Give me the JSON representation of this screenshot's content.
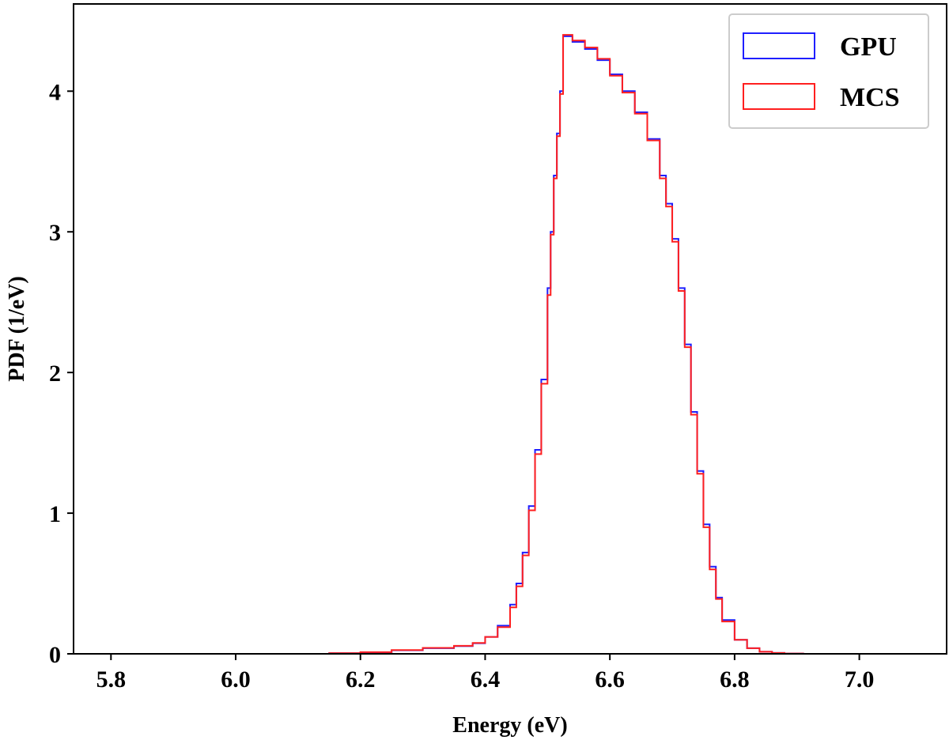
{
  "chart_data": {
    "type": "line",
    "style": "step-histogram",
    "title": "",
    "xlabel": "Energy (eV)",
    "ylabel": "PDF (1/eV)",
    "xlim": [
      5.74,
      7.14
    ],
    "ylim": [
      0,
      4.62
    ],
    "xticks": [
      5.8,
      6.0,
      6.2,
      6.4,
      6.6,
      6.8,
      7.0
    ],
    "xtick_labels": [
      "5.8",
      "6.0",
      "6.2",
      "6.4",
      "6.6",
      "6.8",
      "7.0"
    ],
    "yticks": [
      0,
      1,
      2,
      3,
      4
    ],
    "ytick_labels": [
      "0",
      "1",
      "2",
      "3",
      "4"
    ],
    "grid": false,
    "legend_position": "top-right",
    "series": [
      {
        "name": "GPU",
        "color": "#1f1fff",
        "x": [
          6.09,
          6.15,
          6.2,
          6.25,
          6.3,
          6.35,
          6.38,
          6.4,
          6.42,
          6.44,
          6.45,
          6.46,
          6.47,
          6.48,
          6.49,
          6.5,
          6.505,
          6.51,
          6.515,
          6.52,
          6.525,
          6.54,
          6.56,
          6.58,
          6.6,
          6.62,
          6.64,
          6.66,
          6.68,
          6.69,
          6.7,
          6.71,
          6.72,
          6.73,
          6.74,
          6.75,
          6.76,
          6.77,
          6.78,
          6.8,
          6.82,
          6.84,
          6.86,
          6.88,
          6.91
        ],
        "values": [
          0.0,
          0.005,
          0.01,
          0.025,
          0.04,
          0.055,
          0.075,
          0.12,
          0.2,
          0.35,
          0.5,
          0.72,
          1.05,
          1.45,
          1.95,
          2.6,
          3.0,
          3.4,
          3.7,
          4.0,
          4.39,
          4.35,
          4.3,
          4.22,
          4.12,
          4.0,
          3.85,
          3.66,
          3.4,
          3.2,
          2.95,
          2.6,
          2.2,
          1.72,
          1.3,
          0.92,
          0.62,
          0.4,
          0.24,
          0.1,
          0.04,
          0.015,
          0.006,
          0.002,
          0.0
        ]
      },
      {
        "name": "MCS",
        "color": "#ff1f1f",
        "x": [
          6.09,
          6.15,
          6.2,
          6.25,
          6.3,
          6.35,
          6.38,
          6.4,
          6.42,
          6.44,
          6.45,
          6.46,
          6.47,
          6.48,
          6.49,
          6.5,
          6.505,
          6.51,
          6.515,
          6.52,
          6.525,
          6.54,
          6.56,
          6.58,
          6.6,
          6.62,
          6.64,
          6.66,
          6.68,
          6.69,
          6.7,
          6.71,
          6.72,
          6.73,
          6.74,
          6.75,
          6.76,
          6.77,
          6.78,
          6.8,
          6.82,
          6.84,
          6.86,
          6.88,
          6.91
        ],
        "values": [
          0.0,
          0.005,
          0.012,
          0.027,
          0.042,
          0.057,
          0.077,
          0.12,
          0.19,
          0.33,
          0.48,
          0.7,
          1.02,
          1.42,
          1.92,
          2.55,
          2.98,
          3.38,
          3.68,
          3.98,
          4.4,
          4.36,
          4.31,
          4.23,
          4.11,
          3.99,
          3.84,
          3.65,
          3.38,
          3.18,
          2.93,
          2.58,
          2.18,
          1.7,
          1.28,
          0.9,
          0.6,
          0.39,
          0.23,
          0.1,
          0.04,
          0.015,
          0.006,
          0.002,
          0.0
        ]
      }
    ]
  }
}
